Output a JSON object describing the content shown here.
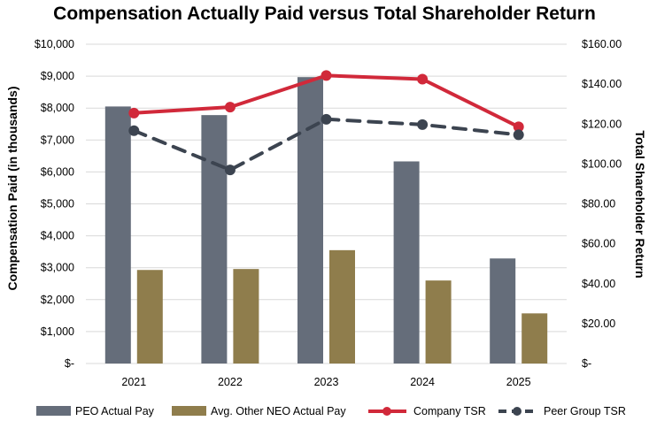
{
  "chart_data": {
    "type": "bar",
    "title": "Compensation Actually Paid versus Total Shareholder Return",
    "categories": [
      "2021",
      "2022",
      "2023",
      "2024",
      "2025"
    ],
    "ylabel": "Compensation Paid (in thousands)",
    "y2label": "Total Shareholder Return",
    "ylim": [
      0,
      10000
    ],
    "y2lim": [
      0,
      160
    ],
    "yticks": [
      "$-",
      "$1,000",
      "$2,000",
      "$3,000",
      "$4,000",
      "$5,000",
      "$6,000",
      "$7,000",
      "$8,000",
      "$9,000",
      "$10,000"
    ],
    "y2ticks": [
      "$-",
      "$20.00",
      "$40.00",
      "$60.00",
      "$80.00",
      "$100.00",
      "$120.00",
      "$140.00",
      "$160.00"
    ],
    "legend_position": "bottom",
    "series": [
      {
        "name": "PEO Actual Pay",
        "kind": "bar",
        "axis": "left",
        "color": "#656d7a",
        "values": [
          8050,
          7780,
          8970,
          6330,
          3290
        ]
      },
      {
        "name": "Avg. Other NEO Actual Pay",
        "kind": "bar",
        "axis": "left",
        "color": "#8f7d4c",
        "values": [
          2930,
          2960,
          3550,
          2600,
          1570
        ]
      },
      {
        "name": "Company TSR",
        "kind": "line",
        "style": "solid",
        "axis": "right",
        "color": "#d1293a",
        "values": [
          125.5,
          128.5,
          144.3,
          142.5,
          118.6
        ]
      },
      {
        "name": "Peer Group TSR",
        "kind": "line",
        "style": "dashed",
        "axis": "right",
        "color": "#3c4450",
        "values": [
          116.7,
          97.0,
          122.4,
          119.7,
          114.6
        ]
      }
    ]
  }
}
